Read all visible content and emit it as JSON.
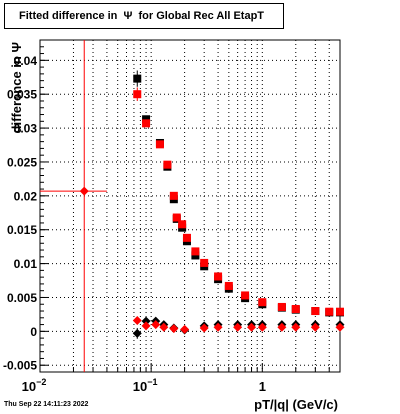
{
  "title": "Fitted difference in  Ψ  for Global Rec All EtapT",
  "footer": "Thu Sep 22 14:11:23 2022",
  "chart_data": {
    "type": "scatter",
    "title": "Fitted difference in  Ψ  for Global Rec All EtapT",
    "xlabel": "pT/|q| (GeV/c)",
    "ylabel": "difference in Ψ",
    "xscale": "log",
    "xlim": [
      0.01,
      5.0
    ],
    "ylim": [
      -0.006,
      0.043
    ],
    "grid": true,
    "x_tick_labels": [
      {
        "value": 0.01,
        "base": "10",
        "exp": "−2"
      },
      {
        "value": 0.1,
        "base": "10",
        "exp": "−1"
      },
      {
        "value": 1,
        "base": "1",
        "exp": ""
      }
    ],
    "y_tick_labels": [
      "-0.005",
      "0",
      "0.005",
      "0.01",
      "0.015",
      "0.02",
      "0.025",
      "0.03",
      "0.035",
      "0.04"
    ],
    "y_tick_values": [
      -0.005,
      0,
      0.005,
      0.01,
      0.015,
      0.02,
      0.025,
      0.03,
      0.035,
      0.04
    ],
    "colors": {
      "black_series": "#000000",
      "red_series": "#ff0000",
      "red_line": "#ff0000"
    },
    "reference_line_x": 0.025,
    "series": [
      {
        "marker": "square",
        "color": "#000000",
        "x": [
          0.075,
          0.09,
          0.12,
          0.14,
          0.16,
          0.17,
          0.19,
          0.21,
          0.25,
          0.3,
          0.4,
          0.5,
          0.7,
          1.0,
          1.5,
          2.0,
          3.0,
          4.0,
          5.0
        ],
        "y": [
          0.0373,
          0.0313,
          0.0278,
          0.0243,
          0.0195,
          0.0166,
          0.0153,
          0.0133,
          0.0112,
          0.0096,
          0.0077,
          0.0063,
          0.0049,
          0.004,
          0.0035,
          0.0032,
          0.003,
          0.0028,
          0.0028
        ],
        "yerr": [
          0.0012,
          0.0005,
          0.0004,
          0.0004,
          0.0004,
          0.0004,
          0.0004,
          0.0004,
          0.0004,
          0.0004,
          0.0004,
          0.0004,
          0.0004,
          0.0004,
          0.0004,
          0.0004,
          0.0004,
          0.0004,
          0.0004
        ]
      },
      {
        "marker": "square",
        "color": "#ff0000",
        "x": [
          0.075,
          0.09,
          0.12,
          0.14,
          0.16,
          0.17,
          0.19,
          0.21,
          0.25,
          0.3,
          0.4,
          0.5,
          0.7,
          1.0,
          1.5,
          2.0,
          3.0,
          4.0,
          5.0
        ],
        "y": [
          0.035,
          0.0307,
          0.0276,
          0.0246,
          0.02,
          0.0168,
          0.0158,
          0.0138,
          0.0118,
          0.0101,
          0.0081,
          0.0067,
          0.0053,
          0.0043,
          0.0036,
          0.0033,
          0.003,
          0.0029,
          0.0029
        ],
        "yerr": [
          0.001,
          0.0005,
          0.0004,
          0.0004,
          0.0004,
          0.0004,
          0.0004,
          0.0004,
          0.0004,
          0.0004,
          0.0004,
          0.0004,
          0.0004,
          0.0004,
          0.0004,
          0.0004,
          0.0004,
          0.0004,
          0.0004
        ]
      },
      {
        "marker": "diamond",
        "color": "#000000",
        "x": [
          0.075,
          0.09,
          0.11,
          0.13,
          0.16,
          0.2,
          0.3,
          0.4,
          0.6,
          0.8,
          1.0,
          1.5,
          2.0,
          3.0,
          5.0
        ],
        "y": [
          -0.0003,
          0.0015,
          0.0015,
          0.001,
          0.0005,
          0.0002,
          0.0008,
          0.001,
          0.001,
          0.001,
          0.001,
          0.001,
          0.001,
          0.001,
          0.001
        ],
        "yerr": [
          0.0008,
          0.0004,
          0.0003,
          0.0003,
          0.0003,
          0.0003,
          0.0003,
          0.0003,
          0.0003,
          0.0003,
          0.0003,
          0.0003,
          0.0003,
          0.0003,
          0.0003
        ]
      },
      {
        "marker": "diamond",
        "color": "#ff0000",
        "x": [
          0.025,
          0.075,
          0.09,
          0.11,
          0.13,
          0.16,
          0.2,
          0.3,
          0.4,
          0.6,
          0.8,
          1.0,
          1.5,
          2.0,
          3.0,
          5.0
        ],
        "y": [
          0.0207,
          0.0016,
          0.0008,
          0.001,
          0.0006,
          0.0004,
          0.0003,
          0.0005,
          0.0006,
          0.0006,
          0.0006,
          0.0006,
          0.0006,
          0.0006,
          0.0006,
          0.0006
        ],
        "xerr_low": [
          0.015,
          0,
          0,
          0,
          0,
          0,
          0,
          0,
          0,
          0,
          0,
          0,
          0,
          0,
          0,
          0
        ],
        "xerr_high": [
          0.015,
          0,
          0,
          0,
          0,
          0,
          0,
          0,
          0,
          0,
          0,
          0,
          0,
          0,
          0,
          0
        ],
        "yerr": [
          0.0003,
          0.0004,
          0.0003,
          0.0003,
          0.0003,
          0.0003,
          0.0003,
          0.0003,
          0.0003,
          0.0003,
          0.0003,
          0.0003,
          0.0003,
          0.0003,
          0.0003,
          0.0003
        ]
      }
    ]
  }
}
